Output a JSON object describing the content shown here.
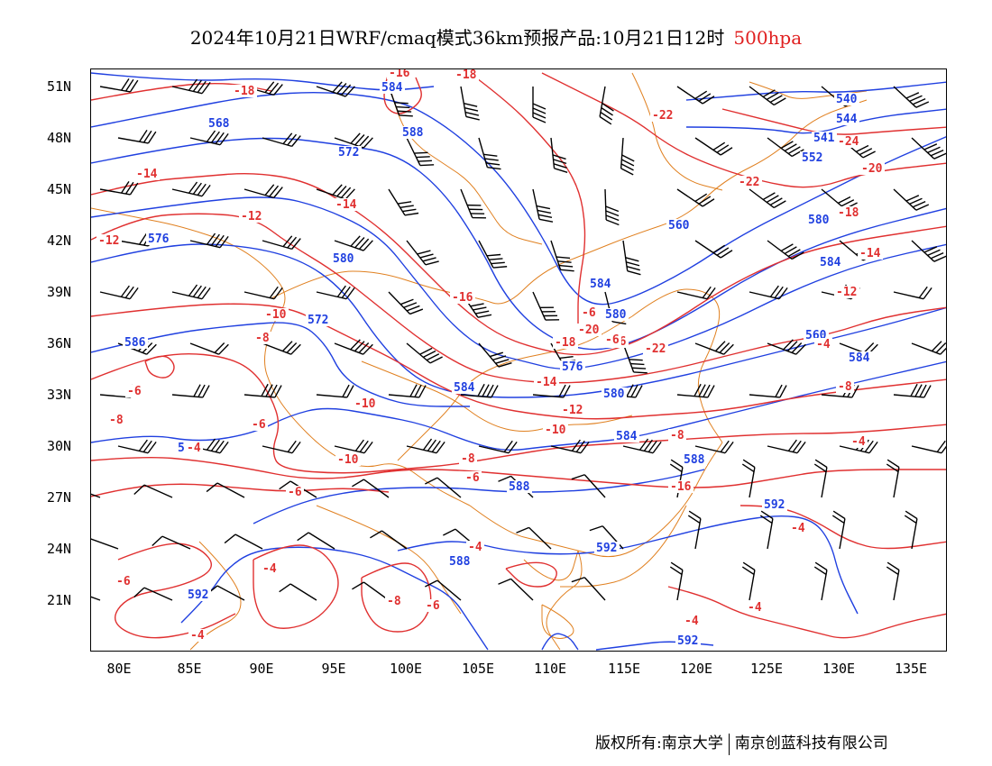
{
  "header": {
    "title_main": "2024年10月21日WRF/cmaq模式36km预报产品:10月21日12时",
    "title_level": "500hpa",
    "level_color": "#e02020"
  },
  "axes": {
    "lat_ticks": [
      "51N",
      "48N",
      "45N",
      "42N",
      "39N",
      "36N",
      "33N",
      "30N",
      "27N",
      "24N",
      "21N"
    ],
    "lon_ticks": [
      "80E",
      "85E",
      "90E",
      "95E",
      "100E",
      "105E",
      "110E",
      "115E",
      "120E",
      "125E",
      "130E",
      "135E"
    ]
  },
  "legend_colors": {
    "height_contour": "#2040e0",
    "temperature_contour": "#e03030",
    "boundary": "#e08020",
    "wind_barb": "#000000"
  },
  "height_labels": [
    "584",
    "568",
    "588",
    "572",
    "552",
    "544",
    "540",
    "541",
    "576",
    "560",
    "580",
    "584",
    "572",
    "580",
    "580",
    "584",
    "576",
    "584",
    "588",
    "580",
    "592",
    "592",
    "588",
    "592",
    "592",
    "584",
    "560",
    "584",
    "588",
    "586",
    "584"
  ],
  "temp_labels": [
    "-16",
    "-18",
    "-18",
    "-22",
    "-24",
    "-20",
    "-22",
    "-14",
    "-12",
    "-18",
    "-14",
    "-12",
    "-12",
    "-14",
    "-16",
    "-10",
    "-8",
    "-6",
    "-6",
    "-10",
    "-8",
    "-18",
    "-20",
    "-16",
    "-14",
    "-12",
    "-10",
    "-8",
    "-6",
    "-6",
    "-8",
    "-4",
    "-4",
    "-4",
    "-8",
    "-6",
    "-6",
    "-4",
    "-4",
    "-4",
    "-4",
    "-4",
    "-10",
    "-8",
    "-6",
    "-22",
    "-16",
    "-4",
    "-6"
  ],
  "footer": {
    "copyright": "版权所有:南京大学",
    "company": "南京创蓝科技有限公司"
  }
}
